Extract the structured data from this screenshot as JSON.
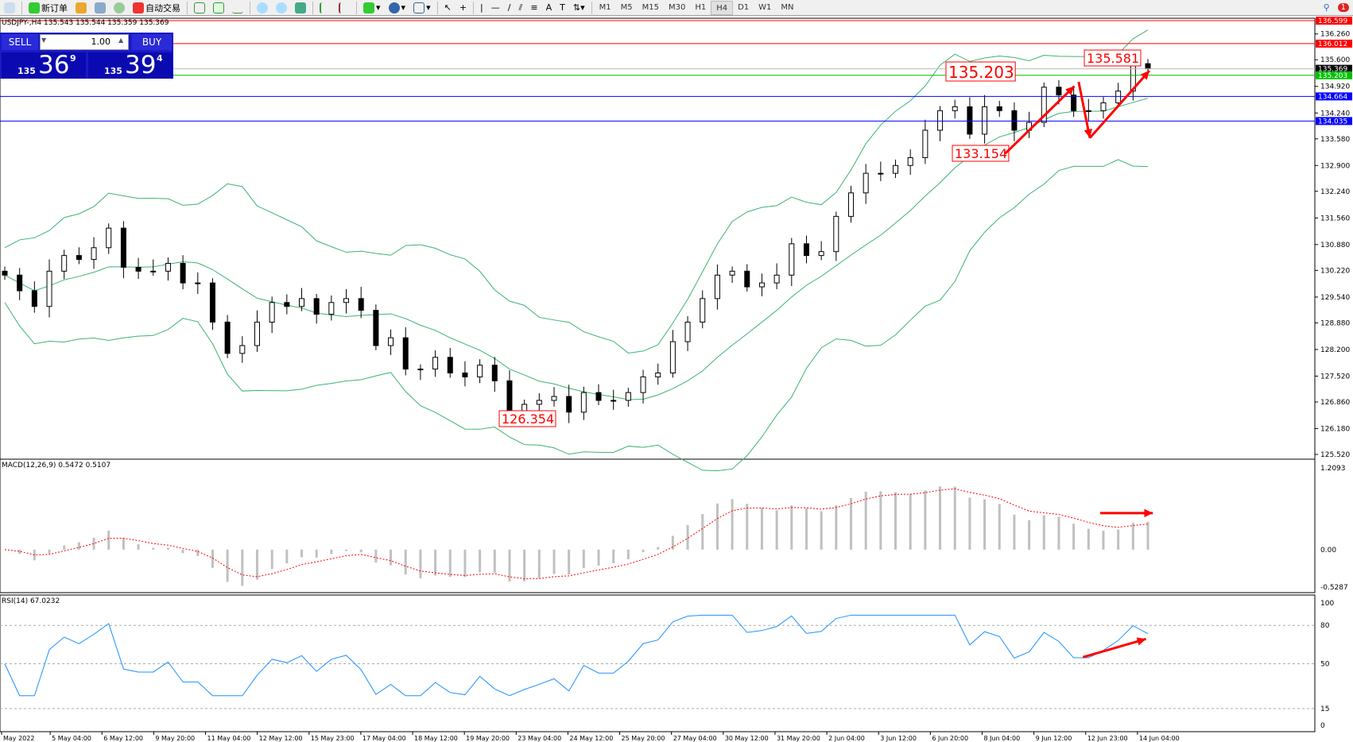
{
  "toolbar": {
    "new_order": "新订单",
    "auto_trading": "自动交易",
    "timeframes": [
      "M1",
      "M5",
      "M15",
      "M30",
      "H1",
      "H4",
      "D1",
      "W1",
      "MN"
    ],
    "active_timeframe": "H4",
    "notification_count": "1"
  },
  "symbol_info": "USDJPY-,H4  135.543 135.544 135.359 135.369",
  "trade_panel": {
    "sell": "SELL",
    "buy": "BUY",
    "lot": "1.00",
    "sell_price": {
      "prefix": "135",
      "big": "36",
      "sup": "9"
    },
    "buy_price": {
      "prefix": "135",
      "big": "39",
      "sup": "4"
    }
  },
  "price_axis": [
    "136.260",
    "135.600",
    "134.920",
    "134.240",
    "133.580",
    "132.900",
    "132.240",
    "131.560",
    "130.880",
    "130.220",
    "129.540",
    "128.880",
    "128.200",
    "127.520",
    "126.860",
    "126.180",
    "125.520"
  ],
  "hlines": [
    {
      "value": 136.599,
      "label": "136.599",
      "color": "#ff0000"
    },
    {
      "value": 136.012,
      "label": "136.012",
      "color": "#ff0000"
    },
    {
      "value": 135.369,
      "label": "135.369",
      "color": "#000000"
    },
    {
      "value": 135.203,
      "label": "135.203",
      "color": "#00c000"
    },
    {
      "value": 134.664,
      "label": "134.664",
      "color": "#0000ff"
    },
    {
      "value": 134.035,
      "label": "134.035",
      "color": "#0000ff"
    }
  ],
  "annotations": [
    "135.203",
    "135.581",
    "133.154",
    "126.354"
  ],
  "macd": {
    "label": "MACD(12,26,9) 0.5472 0.5107",
    "axis": [
      "1.2093",
      "0.00",
      "-0.5287"
    ],
    "range": [
      -0.5287,
      1.2093
    ]
  },
  "rsi": {
    "label": "RSI(14) 67.0232",
    "axis": [
      "100",
      "80",
      "50",
      "15",
      "0"
    ],
    "levels": [
      80,
      50,
      15
    ]
  },
  "time_axis": [
    "May 2022",
    "5 May 04:00",
    "6 May 12:00",
    "9 May 20:00",
    "11 May 04:00",
    "12 May 12:00",
    "15 May 23:00",
    "17 May 04:00",
    "18 May 12:00",
    "19 May 20:00",
    "23 May 04:00",
    "24 May 12:00",
    "25 May 20:00",
    "27 May 04:00",
    "30 May 12:00",
    "31 May 20:00",
    "2 Jun 04:00",
    "3 Jun 12:00",
    "6 Jun 20:00",
    "8 Jun 04:00",
    "9 Jun 12:00",
    "12 Jun 23:00",
    "14 Jun 04:00"
  ],
  "chart_data": {
    "type": "candlestick",
    "symbol": "USDJPY",
    "timeframe": "H4",
    "price_range": [
      125.52,
      136.599
    ],
    "closes": [
      130.1,
      129.7,
      129.3,
      130.2,
      130.6,
      130.5,
      130.8,
      131.3,
      130.3,
      130.2,
      130.2,
      130.4,
      129.9,
      129.9,
      128.9,
      128.1,
      128.3,
      128.9,
      129.4,
      129.3,
      129.5,
      129.1,
      129.4,
      129.5,
      129.2,
      128.3,
      128.5,
      127.7,
      127.7,
      128.0,
      127.6,
      127.5,
      127.8,
      127.4,
      126.5,
      126.8,
      126.9,
      127.0,
      126.6,
      127.1,
      126.9,
      126.9,
      127.1,
      127.5,
      127.6,
      128.4,
      128.9,
      129.5,
      130.1,
      130.2,
      129.8,
      129.9,
      130.1,
      130.9,
      130.6,
      130.7,
      131.6,
      132.2,
      132.7,
      132.7,
      132.9,
      133.1,
      133.8,
      134.3,
      134.4,
      133.7,
      134.4,
      134.3,
      133.8,
      134.0,
      134.9,
      134.7,
      134.3,
      134.3,
      134.5,
      134.8,
      135.5,
      135.369
    ]
  }
}
